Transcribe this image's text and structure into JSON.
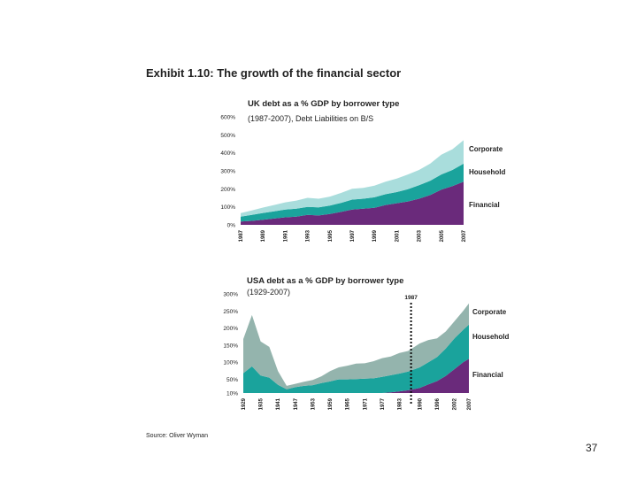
{
  "page": {
    "title": "Exhibit 1.10: The growth of the financial sector",
    "source": "Source: Oliver Wyman",
    "page_number": "37"
  },
  "chart_data": [
    {
      "type": "area",
      "stacked": true,
      "title": "UK debt as a % GDP  by borrower type",
      "subtitle": "(1987-2007), Debt Liabilities on B/S",
      "ylim": [
        0,
        600
      ],
      "yticks": [
        0,
        100,
        200,
        300,
        400,
        500,
        600
      ],
      "ytick_labels": [
        "0%",
        "100%",
        "200%",
        "300%",
        "400%",
        "500%",
        "600%"
      ],
      "xlim": [
        1987,
        2007
      ],
      "xtick_labels": [
        "1987",
        "1989",
        "1991",
        "1993",
        "1995",
        "1997",
        "1999",
        "2001",
        "2003",
        "2005",
        "2007"
      ],
      "x": [
        1987,
        1988,
        1989,
        1990,
        1991,
        1992,
        1993,
        1994,
        1995,
        1996,
        1997,
        1998,
        1999,
        2000,
        2001,
        2002,
        2003,
        2004,
        2005,
        2006,
        2007
      ],
      "series": [
        {
          "name": "Financial",
          "color": "#6a2a7b",
          "values": [
            18,
            22,
            28,
            35,
            42,
            45,
            55,
            52,
            60,
            72,
            85,
            90,
            95,
            110,
            120,
            130,
            145,
            165,
            195,
            215,
            240
          ]
        },
        {
          "name": "Household",
          "color": "#1aa39c",
          "values": [
            27,
            33,
            38,
            40,
            43,
            45,
            45,
            45,
            47,
            50,
            55,
            55,
            58,
            60,
            62,
            68,
            75,
            80,
            85,
            90,
            100
          ]
        },
        {
          "name": "Corporate",
          "color": "#a9dddc",
          "values": [
            20,
            25,
            30,
            35,
            40,
            45,
            50,
            48,
            50,
            55,
            60,
            60,
            65,
            70,
            75,
            82,
            85,
            95,
            110,
            115,
            130
          ]
        }
      ],
      "legend": [
        "Corporate",
        "Household",
        "Financial"
      ]
    },
    {
      "type": "area",
      "stacked": true,
      "title": "USA debt as a % GDP by borrower type",
      "subtitle": "(1929-2007)",
      "ylim": [
        10,
        300
      ],
      "yticks": [
        10,
        50,
        100,
        150,
        200,
        250,
        300
      ],
      "ytick_labels": [
        "10%",
        "50%",
        "100%",
        "150%",
        "200%",
        "250%",
        "300%"
      ],
      "xlim": [
        1929,
        2007
      ],
      "xtick_labels": [
        "1929",
        "1935",
        "1941",
        "1947",
        "1953",
        "1959",
        "1965",
        "1971",
        "1977",
        "1983",
        "1990",
        "1996",
        "2002",
        "2007"
      ],
      "x": [
        1929,
        1932,
        1935,
        1938,
        1941,
        1944,
        1947,
        1950,
        1953,
        1956,
        1959,
        1962,
        1965,
        1968,
        1971,
        1974,
        1977,
        1980,
        1983,
        1986,
        1990,
        1993,
        1996,
        1999,
        2002,
        2005,
        2007
      ],
      "series": [
        {
          "name": "Financial",
          "color": "#6a2a7b",
          "values": [
            8,
            8,
            6,
            5,
            4,
            3,
            2,
            3,
            3,
            4,
            4,
            5,
            5,
            6,
            7,
            8,
            10,
            12,
            15,
            18,
            25,
            35,
            45,
            60,
            80,
            100,
            110
          ]
        },
        {
          "name": "Household",
          "color": "#1aa39c",
          "values": [
            60,
            80,
            55,
            50,
            30,
            18,
            25,
            28,
            30,
            35,
            40,
            45,
            45,
            45,
            45,
            45,
            47,
            50,
            52,
            55,
            60,
            65,
            70,
            80,
            90,
            95,
            100
          ]
        },
        {
          "name": "Corporate",
          "color": "#94b4ad",
          "values": [
            100,
            150,
            100,
            90,
            40,
            10,
            10,
            12,
            15,
            20,
            30,
            35,
            40,
            45,
            45,
            50,
            55,
            55,
            60,
            60,
            70,
            65,
            55,
            50,
            50,
            55,
            62
          ]
        }
      ],
      "legend": [
        "Corporate",
        "Household",
        "Financial"
      ],
      "annotation": {
        "label": "1987",
        "x": 1987
      }
    }
  ]
}
